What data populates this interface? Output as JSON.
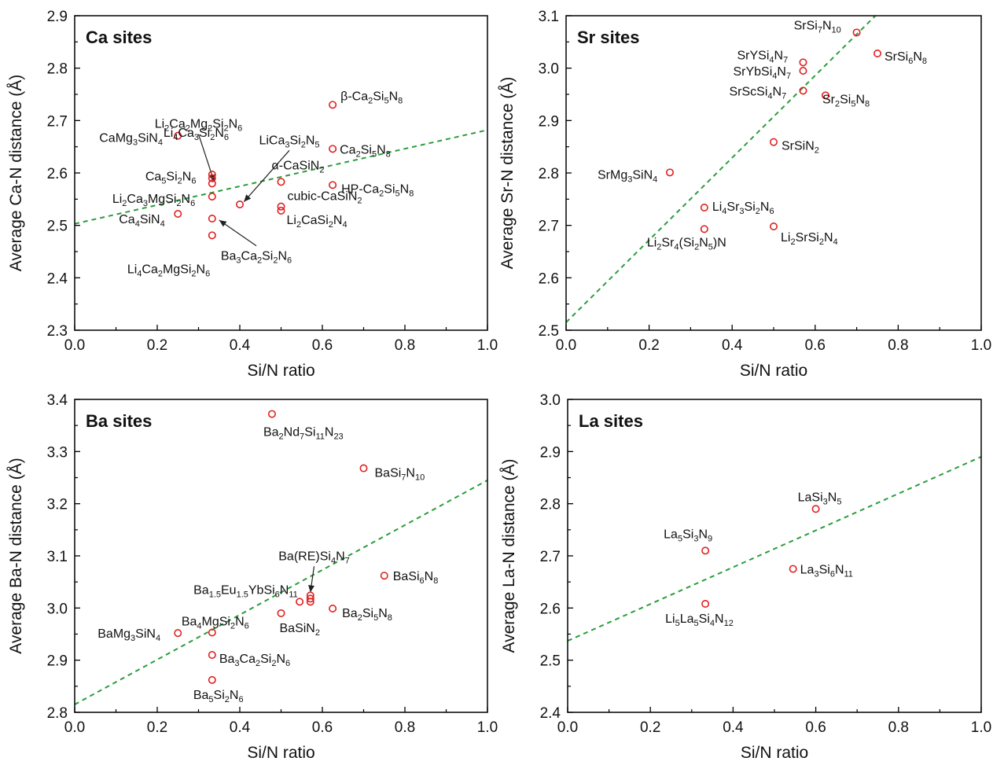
{
  "chart_data": [
    {
      "type": "scatter",
      "title": "Ca sites",
      "xlabel": "Si/N ratio",
      "ylabel": "Average Ca-N distance (Å)",
      "xlim": [
        0.0,
        1.0
      ],
      "ylim": [
        2.3,
        2.9
      ],
      "xticks": [
        "0.0",
        "0.2",
        "0.4",
        "0.6",
        "0.8",
        "1.0"
      ],
      "yticks": [
        "2.3",
        "2.4",
        "2.5",
        "2.6",
        "2.7",
        "2.8",
        "2.9"
      ],
      "trend": [
        [
          0.0,
          2.503
        ],
        [
          1.0,
          2.682
        ]
      ],
      "points": [
        {
          "x": 0.25,
          "y": 2.671,
          "label": "CaMg₃SiN₄"
        },
        {
          "x": 0.333,
          "y": 2.597,
          "label": "Li₄Ca₃Si₂N₆"
        },
        {
          "x": 0.333,
          "y": 2.59
        },
        {
          "x": 0.333,
          "y": 2.58,
          "label": "Ca₅Si₂N₆"
        },
        {
          "x": 0.333,
          "y": 2.555,
          "label": "Li₂Ca₃MgSi₂N₆"
        },
        {
          "x": 0.25,
          "y": 2.522,
          "label": "Ca₄SiN₄"
        },
        {
          "x": 0.333,
          "y": 2.513
        },
        {
          "x": 0.333,
          "y": 2.481,
          "label": "Li₄Ca₂MgSi₂N₆"
        },
        {
          "x": 0.4,
          "y": 2.54
        },
        {
          "x": 0.5,
          "y": 2.583,
          "label": "α-CaSiN₂"
        },
        {
          "x": 0.5,
          "y": 2.536,
          "label": "cubic-CaSiN₂"
        },
        {
          "x": 0.5,
          "y": 2.528,
          "label": "Li₂CaSi₂N₄"
        },
        {
          "x": 0.625,
          "y": 2.73,
          "label": "β-Ca₂Si₅N₈"
        },
        {
          "x": 0.625,
          "y": 2.646,
          "label": "Ca₂Si₅N₈"
        },
        {
          "x": 0.625,
          "y": 2.577,
          "label": "HP-Ca₂Si₅N₈"
        }
      ],
      "annotations": [
        {
          "text": "Li₂Ca₂Mg₂Si₂N₆",
          "x": 0.3,
          "y": 2.686,
          "to": [
            0.338,
            2.583
          ]
        },
        {
          "text": "LiCa₃Si₂N₅",
          "x": 0.52,
          "y": 2.655,
          "to": [
            0.41,
            2.545
          ]
        },
        {
          "text": "Ba₃Ca₂Si₂N₆",
          "x": 0.44,
          "y": 2.434,
          "to": [
            0.35,
            2.51
          ]
        }
      ]
    },
    {
      "type": "scatter",
      "title": "Sr sites",
      "xlabel": "Si/N ratio",
      "ylabel": "Average Sr-N distance (Å)",
      "xlim": [
        0.0,
        1.0
      ],
      "ylim": [
        2.5,
        3.1
      ],
      "xticks": [
        "0.0",
        "0.2",
        "0.4",
        "0.6",
        "0.8",
        "1.0"
      ],
      "yticks": [
        "2.5",
        "2.6",
        "2.7",
        "2.8",
        "2.9",
        "3.0",
        "3.1"
      ],
      "trend": [
        [
          0.0,
          2.515
        ],
        [
          1.0,
          3.3
        ]
      ],
      "points": [
        {
          "x": 0.7,
          "y": 3.068,
          "label": "SrSi₇N₁₀"
        },
        {
          "x": 0.75,
          "y": 3.028,
          "label": "SrSi₆N₈"
        },
        {
          "x": 0.571,
          "y": 3.011,
          "label": "SrYSi₄N₇"
        },
        {
          "x": 0.571,
          "y": 2.995,
          "label": "SrYbSi₄N₇"
        },
        {
          "x": 0.571,
          "y": 2.957,
          "label": "SrScSi₄N₇"
        },
        {
          "x": 0.625,
          "y": 2.948,
          "label": "Sr₂Si₅N₈"
        },
        {
          "x": 0.5,
          "y": 2.859,
          "label": "SrSiN₂"
        },
        {
          "x": 0.25,
          "y": 2.801,
          "label": "SrMg₃SiN₄"
        },
        {
          "x": 0.333,
          "y": 2.734,
          "label": "Li₄Sr₃Si₂N₆"
        },
        {
          "x": 0.5,
          "y": 2.698,
          "label": "Li₂SrSi₂N₄"
        },
        {
          "x": 0.333,
          "y": 2.693,
          "label": "Li₂Sr₄(Si₂N₅)N"
        }
      ]
    },
    {
      "type": "scatter",
      "title": "Ba sites",
      "xlabel": "Si/N ratio",
      "ylabel": "Average Ba-N distance (Å)",
      "xlim": [
        0.0,
        1.0
      ],
      "ylim": [
        2.8,
        3.4
      ],
      "xticks": [
        "0.0",
        "0.2",
        "0.4",
        "0.6",
        "0.8",
        "1.0"
      ],
      "yticks": [
        "2.8",
        "2.9",
        "3.0",
        "3.1",
        "3.2",
        "3.3",
        "3.4"
      ],
      "trend": [
        [
          0.0,
          2.815
        ],
        [
          1.0,
          3.245
        ]
      ],
      "points": [
        {
          "x": 0.478,
          "y": 3.372,
          "label": "Ba₂Nd₇Si₁₁N₂₃"
        },
        {
          "x": 0.7,
          "y": 3.268,
          "label": "BaSi₇N₁₀"
        },
        {
          "x": 0.75,
          "y": 3.062,
          "label": "BaSi₆N₈"
        },
        {
          "x": 0.571,
          "y": 3.024
        },
        {
          "x": 0.571,
          "y": 3.018
        },
        {
          "x": 0.571,
          "y": 3.012
        },
        {
          "x": 0.545,
          "y": 3.012,
          "label": "Ba₁.₅Eu₁.₅YbSi₆N₁₁"
        },
        {
          "x": 0.5,
          "y": 2.99,
          "label": "BaSiN₂"
        },
        {
          "x": 0.625,
          "y": 2.999,
          "label": "Ba₂Si₅N₈"
        },
        {
          "x": 0.25,
          "y": 2.952,
          "label": "BaMg₃SiN₄"
        },
        {
          "x": 0.333,
          "y": 2.953,
          "label": "Ba₄MgSi₂N₆"
        },
        {
          "x": 0.333,
          "y": 2.91,
          "label": "Ba₃Ca₂Si₂N₆"
        },
        {
          "x": 0.333,
          "y": 2.862,
          "label": "Ba₅Si₂N₆"
        }
      ],
      "annotations": [
        {
          "text": "Ba(RE)Si₄N₇",
          "x": 0.58,
          "y": 3.092,
          "to": [
            0.571,
            3.03
          ]
        }
      ]
    },
    {
      "type": "scatter",
      "title": "La sites",
      "xlabel": "Si/N ratio",
      "ylabel": "Average La-N distance (Å)",
      "xlim": [
        0.0,
        1.0
      ],
      "ylim": [
        2.4,
        3.0
      ],
      "xticks": [
        "0.0",
        "0.2",
        "0.4",
        "0.6",
        "0.8",
        "1.0"
      ],
      "yticks": [
        "2.4",
        "2.5",
        "2.6",
        "2.7",
        "2.8",
        "2.9",
        "3.0"
      ],
      "trend": [
        [
          0.0,
          2.537
        ],
        [
          1.0,
          2.89
        ]
      ],
      "points": [
        {
          "x": 0.6,
          "y": 2.79,
          "label": "LaSi₃N₅"
        },
        {
          "x": 0.333,
          "y": 2.71,
          "label": "La₅Si₃N₉"
        },
        {
          "x": 0.545,
          "y": 2.675,
          "label": "La₃Si₆N₁₁"
        },
        {
          "x": 0.333,
          "y": 2.608,
          "label": "Li₅La₅Si₄N₁₂"
        }
      ]
    }
  ]
}
